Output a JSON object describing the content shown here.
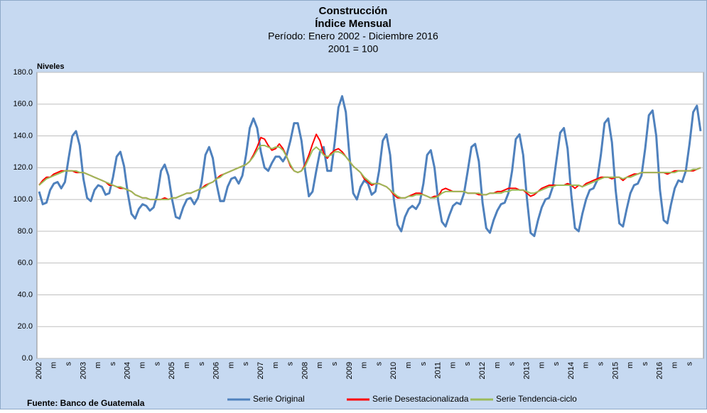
{
  "chart_data": {
    "type": "line",
    "title": "Construcción",
    "subtitle": "Índice Mensual",
    "period": "Período: Enero 2002 - Diciembre 2016",
    "base": "2001 = 100",
    "y_label": "Niveles",
    "source": "Fuente: Banco de Guatemala",
    "ylim": [
      0,
      180
    ],
    "yticks": [
      {
        "value": 0,
        "label": "0.0"
      },
      {
        "value": 20,
        "label": "20.0"
      },
      {
        "value": 40,
        "label": "40.0"
      },
      {
        "value": 60,
        "label": "60.0"
      },
      {
        "value": 80,
        "label": "80.0"
      },
      {
        "value": 100,
        "label": "100.0"
      },
      {
        "value": 120,
        "label": "120.0"
      },
      {
        "value": 140,
        "label": "140.0"
      },
      {
        "value": 160,
        "label": "160.0"
      },
      {
        "value": 180,
        "label": "180.0"
      }
    ],
    "grid": true,
    "categories": [
      "2002",
      null,
      null,
      null,
      "m",
      null,
      null,
      null,
      "s",
      null,
      null,
      null,
      "2003",
      null,
      null,
      null,
      "m",
      null,
      null,
      null,
      "s",
      null,
      null,
      null,
      "2004",
      null,
      null,
      null,
      "m",
      null,
      null,
      null,
      "s",
      null,
      null,
      null,
      "2005",
      null,
      null,
      null,
      "m",
      null,
      null,
      null,
      "s",
      null,
      null,
      null,
      "2006",
      null,
      null,
      null,
      "m",
      null,
      null,
      null,
      "s",
      null,
      null,
      null,
      "2007",
      null,
      null,
      null,
      "m",
      null,
      null,
      null,
      "s",
      null,
      null,
      null,
      "2008",
      null,
      null,
      null,
      "m",
      null,
      null,
      null,
      "s",
      null,
      null,
      null,
      "2009",
      null,
      null,
      null,
      "m",
      null,
      null,
      null,
      "s",
      null,
      null,
      null,
      "2010",
      null,
      null,
      null,
      "m",
      null,
      null,
      null,
      "s",
      null,
      null,
      null,
      "2011",
      null,
      null,
      null,
      "m",
      null,
      null,
      null,
      "s",
      null,
      null,
      null,
      "2012",
      null,
      null,
      null,
      "m",
      null,
      null,
      null,
      "s",
      null,
      null,
      null,
      "2013",
      null,
      null,
      null,
      "m",
      null,
      null,
      null,
      "s",
      null,
      null,
      null,
      "2014",
      null,
      null,
      null,
      "m",
      null,
      null,
      null,
      "s",
      null,
      null,
      null,
      "2015",
      null,
      null,
      null,
      "m",
      null,
      null,
      null,
      "s",
      null,
      null,
      null,
      "2016",
      null,
      null,
      null,
      "m",
      null,
      null,
      null,
      "s",
      null,
      null,
      null
    ],
    "series": [
      {
        "name": "Serie Original",
        "color": "#4f81bd",
        "values": [
          105,
          97,
          98,
          106,
          110,
          111,
          107,
          111,
          126,
          140,
          143,
          134,
          113,
          101,
          99,
          106,
          109,
          108,
          103,
          104,
          114,
          127,
          130,
          121,
          104,
          91,
          88,
          94,
          97,
          96,
          93,
          95,
          103,
          118,
          122,
          115,
          100,
          89,
          88,
          95,
          100,
          101,
          97,
          101,
          111,
          128,
          133,
          126,
          110,
          99,
          99,
          108,
          113,
          114,
          110,
          115,
          128,
          145,
          151,
          145,
          130,
          120,
          118,
          123,
          127,
          127,
          124,
          128,
          137,
          148,
          148,
          137,
          118,
          102,
          105,
          118,
          130,
          133,
          118,
          118,
          136,
          158,
          165,
          155,
          127,
          104,
          100,
          108,
          112,
          110,
          103,
          105,
          118,
          137,
          141,
          128,
          100,
          84,
          80,
          89,
          94,
          96,
          94,
          98,
          110,
          128,
          131,
          120,
          99,
          86,
          83,
          90,
          96,
          98,
          97,
          104,
          118,
          133,
          135,
          124,
          98,
          82,
          79,
          87,
          93,
          97,
          98,
          104,
          118,
          138,
          141,
          128,
          101,
          79,
          77,
          87,
          95,
          100,
          101,
          108,
          125,
          142,
          145,
          132,
          103,
          82,
          80,
          91,
          100,
          106,
          107,
          112,
          128,
          148,
          151,
          136,
          106,
          85,
          83,
          94,
          104,
          109,
          110,
          115,
          132,
          153,
          156,
          140,
          106,
          87,
          85,
          97,
          107,
          112,
          111,
          118,
          135,
          155,
          159,
          143
        ]
      },
      {
        "name": "Serie Desestacionalizada",
        "color": "#ff0000",
        "values": [
          109,
          112,
          114,
          114,
          116,
          117,
          118,
          118,
          118,
          118,
          117,
          117,
          117,
          116,
          115,
          114,
          113,
          112,
          111,
          109,
          109,
          108,
          107,
          107,
          106,
          105,
          103,
          102,
          101,
          101,
          100,
          100,
          100,
          100,
          101,
          100,
          101,
          101,
          102,
          103,
          104,
          104,
          105,
          106,
          107,
          109,
          110,
          111,
          113,
          115,
          116,
          117,
          118,
          119,
          120,
          121,
          122,
          124,
          128,
          133,
          139,
          138,
          134,
          131,
          132,
          135,
          132,
          127,
          121,
          118,
          117,
          118,
          122,
          128,
          135,
          141,
          137,
          129,
          126,
          129,
          131,
          132,
          130,
          127,
          124,
          121,
          119,
          117,
          113,
          111,
          109,
          110,
          110,
          109,
          108,
          106,
          103,
          101,
          101,
          101,
          102,
          103,
          104,
          104,
          103,
          102,
          101,
          102,
          102,
          106,
          107,
          106,
          105,
          105,
          105,
          105,
          104,
          104,
          104,
          103,
          103,
          103,
          104,
          104,
          105,
          105,
          106,
          107,
          107,
          107,
          106,
          106,
          104,
          102,
          103,
          105,
          107,
          108,
          109,
          109,
          109,
          109,
          109,
          110,
          109,
          107,
          109,
          108,
          110,
          111,
          112,
          113,
          114,
          114,
          114,
          113,
          114,
          114,
          112,
          114,
          115,
          116,
          116,
          117,
          117,
          117,
          117,
          117,
          117,
          117,
          116,
          117,
          118,
          118,
          118,
          118,
          118,
          118,
          119,
          120
        ]
      },
      {
        "name": "Serie Tendencia-ciclo",
        "color": "#9bbb59",
        "values": [
          109,
          111,
          113,
          114,
          115,
          116,
          117,
          118,
          118,
          118,
          118,
          117,
          117,
          116,
          115,
          114,
          113,
          112,
          111,
          110,
          109,
          108,
          108,
          107,
          106,
          105,
          103,
          102,
          101,
          101,
          100,
          100,
          100,
          100,
          100,
          100,
          101,
          101,
          102,
          103,
          104,
          104,
          105,
          106,
          107,
          108,
          110,
          111,
          113,
          114,
          116,
          117,
          118,
          119,
          120,
          121,
          122,
          124,
          127,
          131,
          134,
          134,
          133,
          132,
          133,
          133,
          131,
          127,
          122,
          118,
          117,
          118,
          121,
          126,
          131,
          133,
          131,
          128,
          127,
          128,
          130,
          130,
          129,
          127,
          124,
          121,
          119,
          117,
          114,
          112,
          110,
          110,
          110,
          109,
          108,
          106,
          104,
          102,
          101,
          101,
          102,
          102,
          103,
          103,
          103,
          102,
          101,
          101,
          102,
          104,
          105,
          105,
          105,
          105,
          105,
          105,
          104,
          104,
          104,
          104,
          103,
          103,
          104,
          104,
          104,
          104,
          105,
          105,
          106,
          106,
          106,
          106,
          105,
          104,
          104,
          105,
          106,
          107,
          108,
          108,
          109,
          109,
          109,
          109,
          109,
          109,
          109,
          108,
          109,
          110,
          111,
          112,
          113,
          114,
          114,
          114,
          114,
          114,
          113,
          114,
          114,
          115,
          116,
          117,
          117,
          117,
          117,
          117,
          117,
          117,
          117,
          117,
          117,
          118,
          118,
          118,
          118,
          119,
          119,
          120
        ]
      }
    ]
  }
}
